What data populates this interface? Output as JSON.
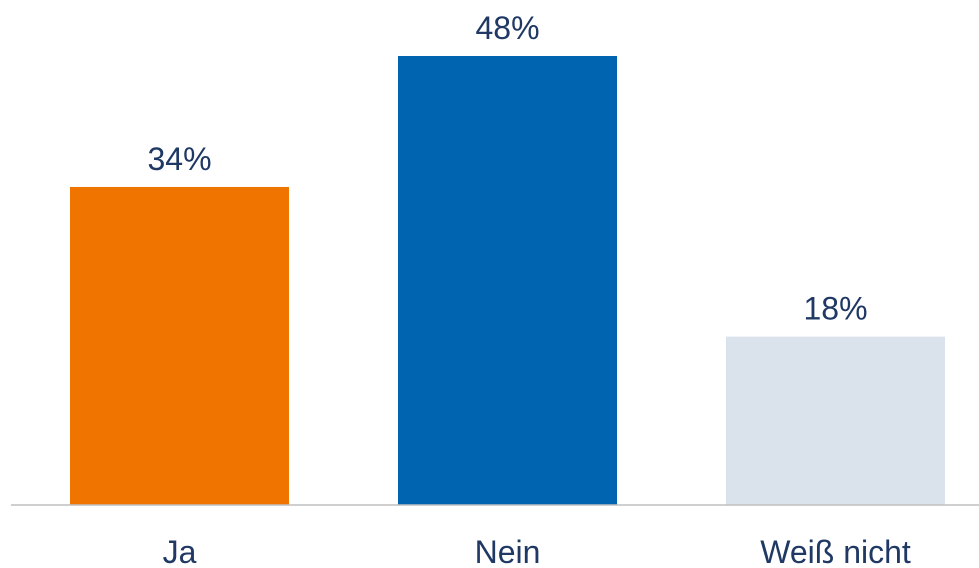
{
  "chart_data": {
    "type": "bar",
    "categories": [
      "Ja",
      "Nein",
      "Weiß nicht"
    ],
    "values": [
      34,
      48,
      18
    ],
    "value_labels": [
      "34%",
      "48%",
      "18%"
    ],
    "colors": [
      "#EF7500",
      "#0064B0",
      "#DAE3EC"
    ],
    "value_label_color": "#1F3864",
    "category_label_color": "#1F3864",
    "baseline_color": "#BFBFBF",
    "ylim": [
      0,
      48
    ],
    "grid": false,
    "legend": "none",
    "title": "",
    "xlabel": "",
    "ylabel": ""
  }
}
